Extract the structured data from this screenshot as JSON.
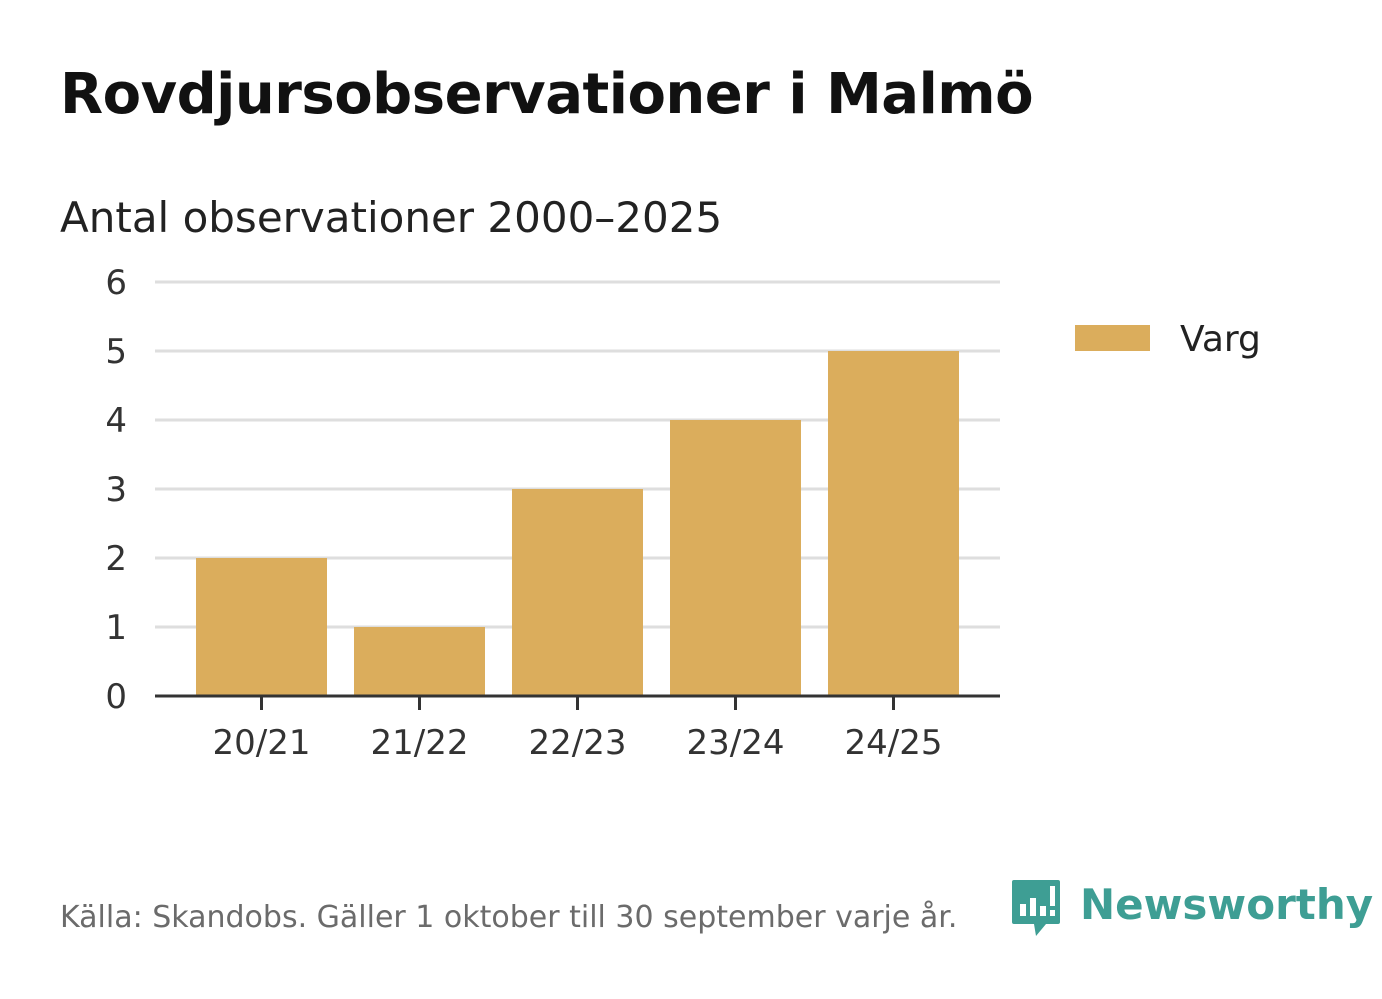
{
  "chart_data": {
    "type": "bar",
    "title": "Rovdjursobservationer i Malmö",
    "subtitle": "Antal observationer 2000–2025",
    "categories": [
      "20/21",
      "21/22",
      "22/23",
      "23/24",
      "24/25"
    ],
    "series": [
      {
        "name": "Varg",
        "values": [
          2,
          1,
          3,
          4,
          5
        ],
        "color": "#dbad5c"
      }
    ],
    "ylim": [
      0,
      6
    ],
    "yticks": [
      0,
      1,
      2,
      3,
      4,
      5,
      6
    ],
    "grid": true,
    "legend": "right",
    "xlabel": "",
    "ylabel": ""
  },
  "footer": {
    "source": "Källa: Skandobs. Gäller 1 oktober till 30 september varje år.",
    "brand": "Newsworthy",
    "brand_icon": "newsworthy-logo-icon",
    "brand_color": "#3e9e94"
  }
}
